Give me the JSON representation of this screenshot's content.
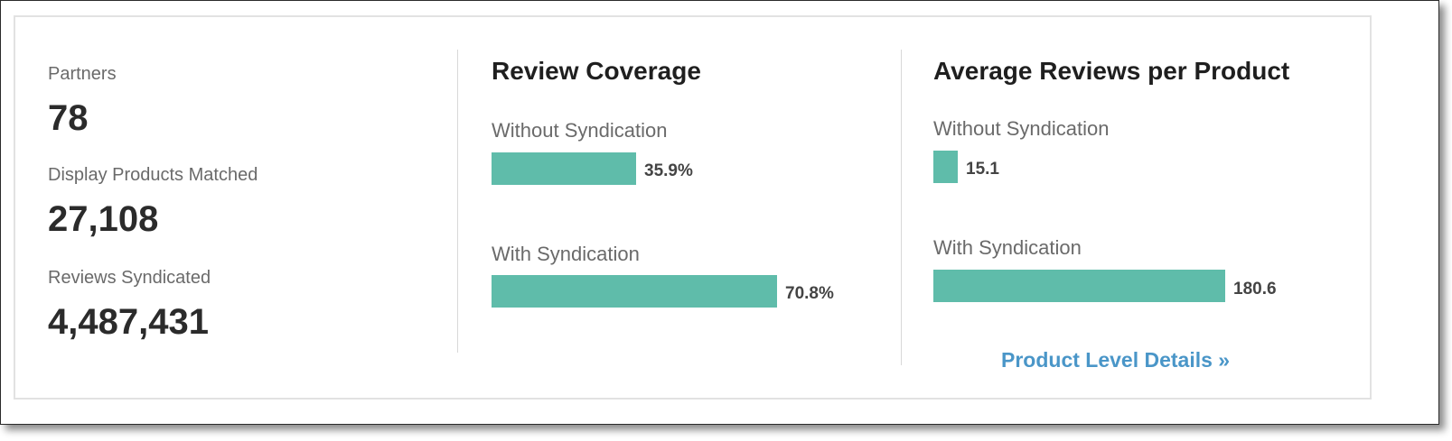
{
  "stats": {
    "partners_label": "Partners",
    "partners_value": "78",
    "products_label": "Display Products Matched",
    "products_value": "27,108",
    "reviews_label": "Reviews Syndicated",
    "reviews_value": "4,487,431"
  },
  "coverage": {
    "title": "Review Coverage",
    "without_label": "Without Syndication",
    "without_value": "35.9%",
    "without_fraction": 0.359,
    "with_label": "With Syndication",
    "with_value": "70.8%",
    "with_fraction": 0.708
  },
  "average": {
    "title": "Average Reviews per Product",
    "without_label": "Without Syndication",
    "without_value": "15.1",
    "without_number": 15.1,
    "with_label": "With Syndication",
    "with_value": "180.6",
    "with_number": 180.6,
    "link_label": "Product Level Details »"
  },
  "colors": {
    "bar": "#5fbcaa",
    "link": "#4a96c8"
  }
}
